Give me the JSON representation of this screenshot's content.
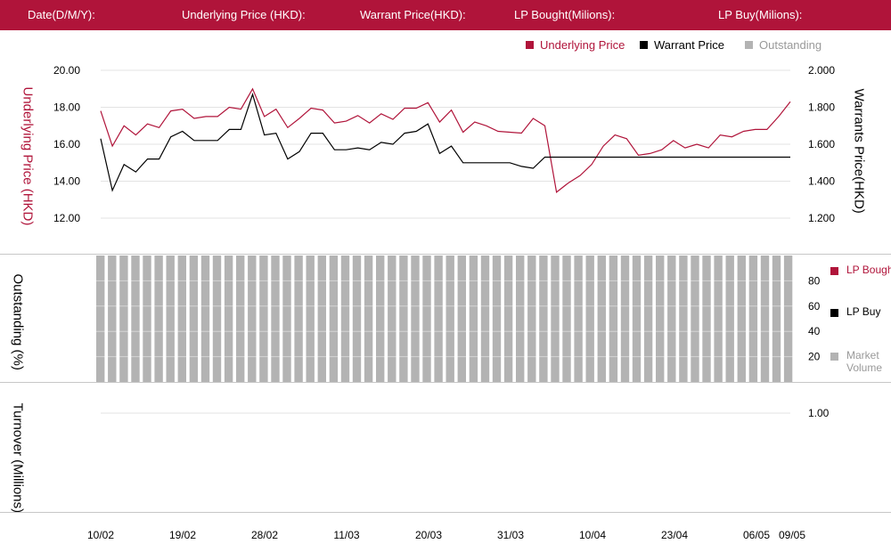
{
  "header": {
    "date_label": "Date(D/M/Y):",
    "underlying_label": "Underlying Price (HKD):",
    "warrant_label": "Warrant  Price(HKD):",
    "lp_bought_label": "LP Bought(Milions):",
    "lp_buy_label": "LP Buy(Milions):"
  },
  "legend": {
    "underlying": "Underlying Price",
    "warrant": "Warrant  Price",
    "outstanding": "Outstanding"
  },
  "side_legend": {
    "lp_bought": "LP Bought",
    "lp_buy": "LP Buy",
    "market_volume": "Market Volume"
  },
  "colors": {
    "brand": "#b0143a",
    "underlying": "#b0143a",
    "warrant": "#000000",
    "outstanding": "#b3b3b3"
  },
  "chart_data": [
    {
      "type": "line",
      "ylabel": "Underlying Price (HKD)",
      "ylabel_right": "Warrants  Price(HKD)",
      "y_ticks": [
        "20.00",
        "18.00",
        "16.00",
        "14.00",
        "12.00"
      ],
      "y2_ticks": [
        "2.000",
        "1.800",
        "1.600",
        "1.400",
        "1.200"
      ],
      "ylim": [
        12,
        20
      ],
      "y2lim": [
        1.2,
        2.0
      ],
      "grid": true,
      "legend_position": "top-right",
      "series": [
        {
          "name": "Underlying Price",
          "axis": "left",
          "values": [
            17.8,
            15.9,
            17.0,
            16.5,
            17.1,
            16.9,
            17.8,
            17.9,
            17.4,
            17.5,
            17.5,
            18.0,
            17.9,
            19.0,
            17.5,
            17.9,
            16.9,
            17.4,
            17.95,
            17.85,
            17.15,
            17.25,
            17.55,
            17.15,
            17.65,
            17.35,
            17.95,
            17.95,
            18.25,
            17.2,
            17.85,
            16.65,
            17.2,
            17.0,
            16.7,
            16.65,
            16.6,
            17.4,
            17.0,
            13.4,
            13.9,
            14.3,
            14.9,
            15.9,
            16.5,
            16.3,
            15.4,
            15.5,
            15.7,
            16.2,
            15.8,
            16.0,
            15.8,
            16.5,
            16.4,
            16.7,
            16.8,
            16.8,
            17.5,
            18.3
          ]
        },
        {
          "name": "Warrant  Price",
          "axis": "right",
          "values": [
            1.63,
            1.35,
            1.49,
            1.45,
            1.52,
            1.52,
            1.64,
            1.67,
            1.62,
            1.62,
            1.62,
            1.68,
            1.68,
            1.87,
            1.65,
            1.66,
            1.52,
            1.56,
            1.66,
            1.66,
            1.57,
            1.57,
            1.58,
            1.57,
            1.61,
            1.6,
            1.66,
            1.67,
            1.71,
            1.55,
            1.59,
            1.5,
            1.5,
            1.5,
            1.5,
            1.5,
            1.48,
            1.47,
            1.53,
            1.53,
            1.53,
            1.53,
            1.53,
            1.53,
            1.53,
            1.53,
            1.53,
            1.53,
            1.53,
            1.53,
            1.53,
            1.53,
            1.53,
            1.53,
            1.53,
            1.53,
            1.53,
            1.53,
            1.53,
            1.53
          ]
        }
      ]
    },
    {
      "type": "bar",
      "ylabel": "Outstanding (%)",
      "y_ticks": [
        "80",
        "60",
        "40",
        "20"
      ],
      "ylim": [
        0,
        100
      ],
      "bar_count": 60,
      "series": [
        {
          "name": "Outstanding",
          "value": 100
        }
      ]
    },
    {
      "type": "bar",
      "ylabel": "Turnover (Millions)",
      "y_ticks": [
        "1.00"
      ],
      "ylim": [
        0,
        1.0
      ],
      "x_ticks": [
        "10/02",
        "19/02",
        "28/02",
        "11/03",
        "20/03",
        "31/03",
        "10/04",
        "23/04",
        "06/05",
        "09/05"
      ],
      "series": []
    }
  ]
}
